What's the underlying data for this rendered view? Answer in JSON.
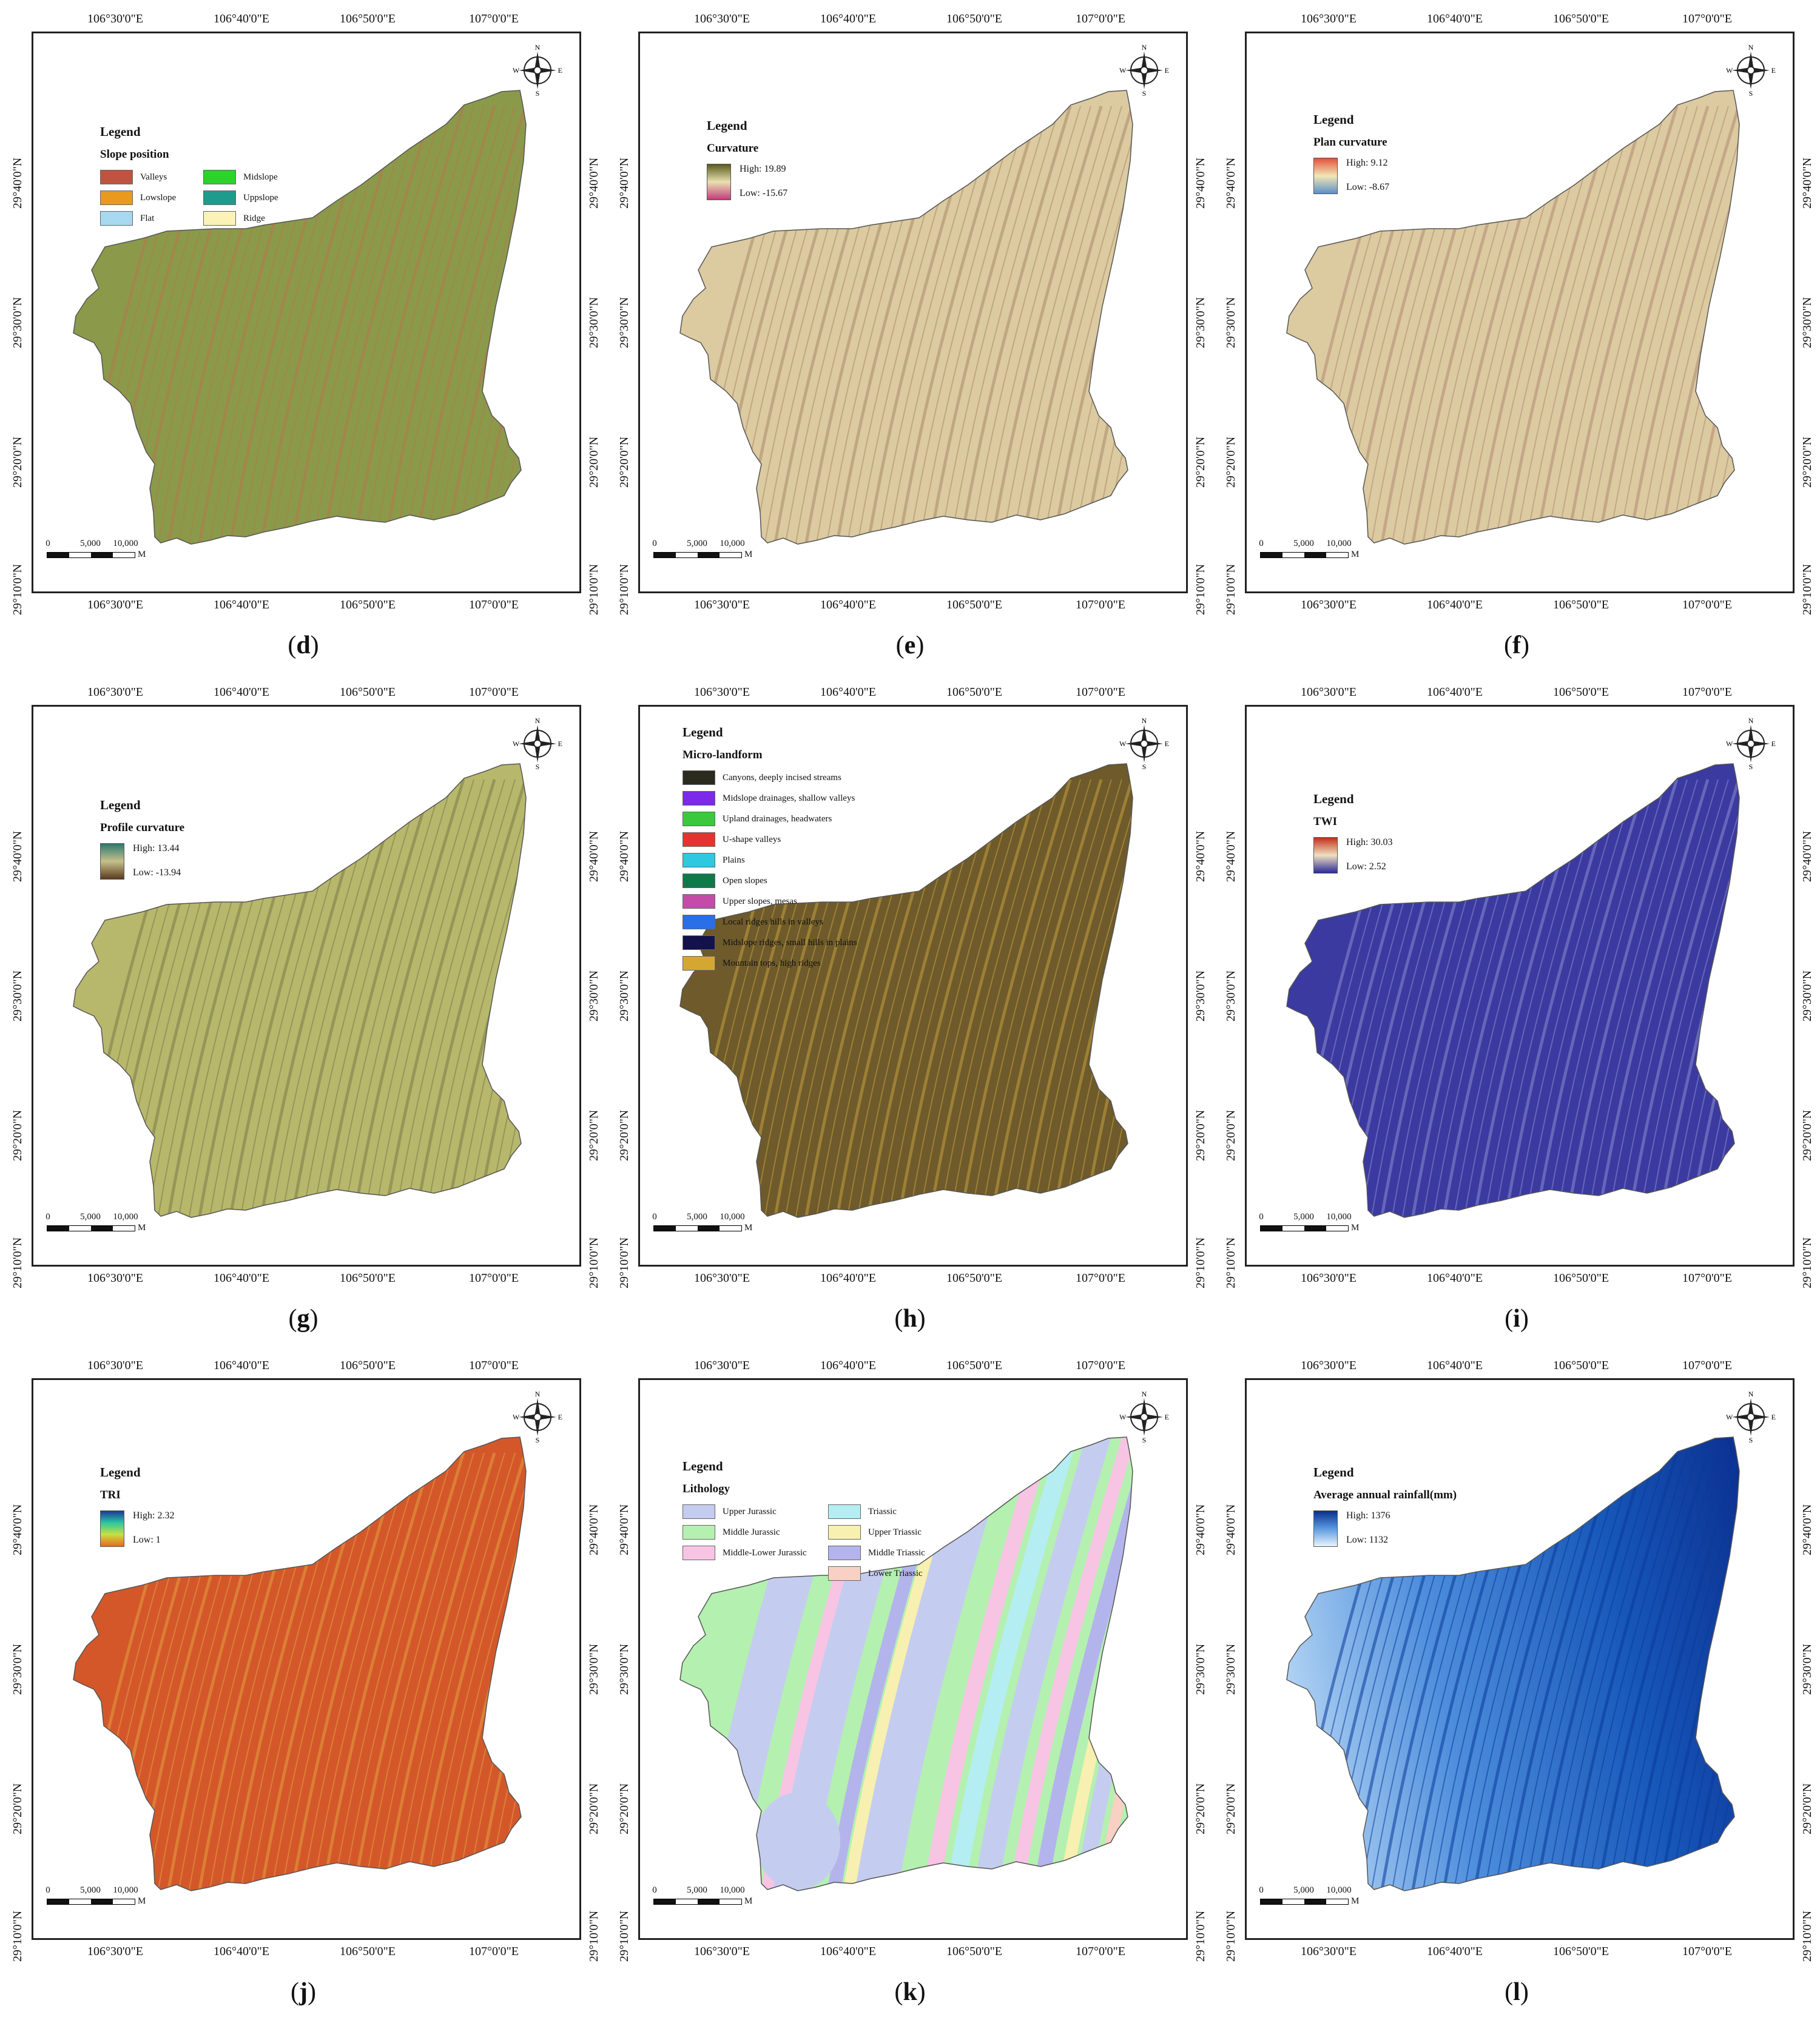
{
  "axes": {
    "top_ticks": [
      "106°30'0\"E",
      "106°40'0\"E",
      "106°50'0\"E",
      "107°0'0\"E"
    ],
    "bottom_ticks": [
      "106°30'0\"E",
      "106°40'0\"E",
      "106°50'0\"E",
      "107°0'0\"E"
    ],
    "left_ticks": [
      "29°40'0\"N",
      "29°30'0\"N",
      "29°20'0\"N",
      "29°10'0\"N"
    ],
    "right_ticks": [
      "29°40'0\"N",
      "29°30'0\"N",
      "29°20'0\"N",
      "29°10'0\"N"
    ]
  },
  "common": {
    "legend_word": "Legend",
    "scale_labels": [
      "0",
      "5,000",
      "10,000"
    ],
    "scale_unit": "M",
    "north": {
      "n": "N",
      "s": "S",
      "e": "E",
      "w": "W"
    }
  },
  "panels": [
    {
      "letter": "d",
      "type": "classes",
      "subtitle": "Slope position",
      "layout": "grid",
      "classes": [
        {
          "label": "Valleys",
          "color": "#c0533f"
        },
        {
          "label": "Midslope",
          "color": "#2bd32b"
        },
        {
          "label": "Lowslope",
          "color": "#e89a1e"
        },
        {
          "label": "Uppslope",
          "color": "#1f9b8c"
        },
        {
          "label": "Flat",
          "color": "#a8d8f0"
        },
        {
          "label": "Ridge",
          "color": "#fbf2b8"
        }
      ],
      "fill": "#8a9a4a",
      "texture": "#b4794c"
    },
    {
      "letter": "e",
      "type": "gradient",
      "subtitle": "Curvature",
      "high": "High: 19.89",
      "low": "Low: -15.67",
      "grad": [
        "#5a5a1e",
        "#e8e0b0",
        "#c43c7c"
      ],
      "fill": "#dccaa0",
      "texture": "#a88a6a"
    },
    {
      "letter": "f",
      "type": "gradient",
      "subtitle": "Plan curvature",
      "high": "High: 9.12",
      "low": "Low: -8.67",
      "grad": [
        "#e0523a",
        "#f3e6b4",
        "#5b8fc7"
      ],
      "fill": "#dccaa0",
      "texture": "#b08a74"
    },
    {
      "letter": "g",
      "type": "gradient",
      "subtitle": "Profile curvature",
      "high": "High: 13.44",
      "low": "Low: -13.94",
      "grad": [
        "#2c7a6e",
        "#c6c08a",
        "#5a3a1e"
      ],
      "fill": "#b8b86c",
      "texture": "#7a7a4a"
    },
    {
      "letter": "h",
      "type": "classes",
      "subtitle": "Micro-landform",
      "layout": "list",
      "classes": [
        {
          "label": "Canyons, deeply incised streams",
          "color": "#2a2a1e"
        },
        {
          "label": "Midslope drainages, shallow valleys",
          "color": "#7a2ae8"
        },
        {
          "label": "Upland drainages, headwaters",
          "color": "#3cc83c"
        },
        {
          "label": "U-shape valleys",
          "color": "#e83232"
        },
        {
          "label": "Plains",
          "color": "#2ec8e0"
        },
        {
          "label": "Open slopes",
          "color": "#0e7a4a"
        },
        {
          "label": "Upper slopes, mesas",
          "color": "#c44ca8"
        },
        {
          "label": "Local ridges hills in valleys",
          "color": "#2a6ee8"
        },
        {
          "label": "Midslope ridges, small hills in plains",
          "color": "#14124a"
        },
        {
          "label": "Mountain tops, high ridges",
          "color": "#d4a830"
        }
      ],
      "fill": "#6e5a2a",
      "texture": "#c4a040"
    },
    {
      "letter": "i",
      "type": "gradient",
      "subtitle": "TWI",
      "high": "High: 30.03",
      "low": "Low: 2.52",
      "grad": [
        "#c03018",
        "#f0e0c0",
        "#2a2a9a"
      ],
      "fill": "#3a3aa0",
      "texture": "#8a8ad0"
    },
    {
      "letter": "j",
      "type": "gradient",
      "subtitle": "TRI",
      "high": "High: 2.32",
      "low": "Low: 1",
      "grad": [
        "#1a3a9a",
        "#2ac8a0",
        "#c8e040",
        "#e86a1a"
      ],
      "fill": "#d4572a",
      "texture": "#e0a040"
    },
    {
      "letter": "k",
      "type": "classes",
      "subtitle": "Lithology",
      "layout": "grid",
      "classes": [
        {
          "label": "Upper Jurassic",
          "color": "#c4cdef"
        },
        {
          "label": "Triassic",
          "color": "#b4eef2"
        },
        {
          "label": "Middle Jurassic",
          "color": "#b4f0b0"
        },
        {
          "label": "Upper Triassic",
          "color": "#f8f0b0"
        },
        {
          "label": "Middle-Lower Jurassic",
          "color": "#f8c4e4"
        },
        {
          "label": "Middle Triassic",
          "color": "#b4b4ec"
        },
        {
          "label": "",
          "color": ""
        },
        {
          "label": "Lower Triassic",
          "color": "#f8d0c4"
        }
      ],
      "fill": "#b4f0b0",
      "texture": "#c4cdef"
    },
    {
      "letter": "l",
      "type": "gradient",
      "subtitle": "Average annual rainfall(mm)",
      "high": "High: 1376",
      "low": "Low: 1132",
      "grad": [
        "#08308c",
        "#5a9ae0",
        "#e8f4fc"
      ],
      "fill": "#3a7ad4",
      "texture": "#0a3a9a"
    }
  ]
}
